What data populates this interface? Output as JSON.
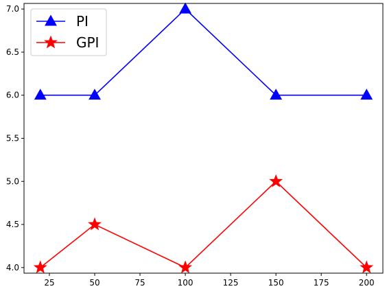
{
  "chart_data": {
    "type": "line",
    "title": "",
    "xlabel": "",
    "ylabel": "",
    "x": [
      20,
      50,
      100,
      150,
      200
    ],
    "xlim": [
      11,
      209
    ],
    "ylim": [
      3.935,
      7.065
    ],
    "xticks": [
      25,
      50,
      75,
      100,
      125,
      150,
      175,
      200
    ],
    "yticks": [
      4.0,
      4.5,
      5.0,
      5.5,
      6.0,
      6.5,
      7.0
    ],
    "x_tick_labels": [
      "25",
      "50",
      "75",
      "100",
      "125",
      "150",
      "175",
      "200"
    ],
    "y_tick_labels": [
      "4.0",
      "4.5",
      "5.0",
      "5.5",
      "6.0",
      "6.5",
      "7.0"
    ],
    "grid": false,
    "legend_position": "top-left",
    "series": [
      {
        "name": "PI",
        "color": "#0000ff",
        "marker": "triangle",
        "values": [
          6,
          6,
          7,
          6,
          6
        ]
      },
      {
        "name": "GPI",
        "color": "#ff0000",
        "marker": "star",
        "values": [
          4,
          4.5,
          4,
          5,
          4
        ]
      }
    ]
  }
}
